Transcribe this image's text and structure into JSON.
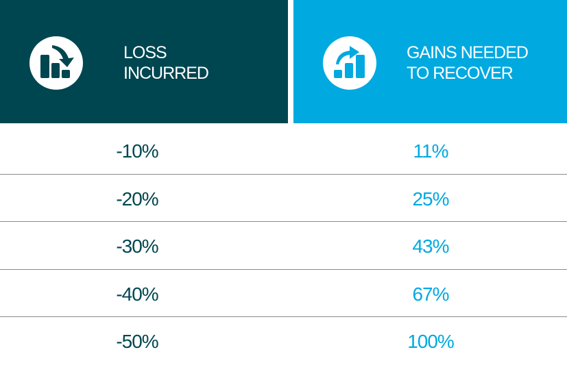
{
  "table": {
    "headers": [
      "LOSS INCURRED",
      "GAINS NEEDED TO RECOVER"
    ],
    "rows": [
      [
        "-10%",
        "11%"
      ],
      [
        "-20%",
        "25%"
      ],
      [
        "-30%",
        "43%"
      ],
      [
        "-40%",
        "67%"
      ],
      [
        "-50%",
        "100%"
      ]
    ]
  }
}
